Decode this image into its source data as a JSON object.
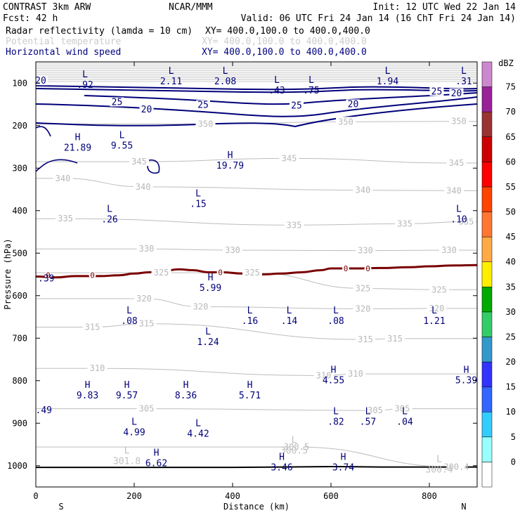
{
  "header": {
    "model": "CONTRAST  3km ARW",
    "forecast": "Fcst:   42 h",
    "center": "NCAR/MMM",
    "init": "Init: 12 UTC Wed 22 Jan 14",
    "valid": "Valid: 06 UTC Fri 24 Jan 14 (16 ChT Fri 24 Jan 14)",
    "fields": [
      {
        "label": "Radar reflectivity (lamda = 10 cm)",
        "xy": "XY= 400.0,100.0 to 400.0,400.0",
        "color": "#000000"
      },
      {
        "label": "Potential temperature",
        "xy": "XY= 400.0,100.0 to 400.0,400.0",
        "color": "#cccccc"
      },
      {
        "label": "Horizontal wind speed",
        "xy": "XY= 400.0,100.0 to 400.0,400.0",
        "color": "#000080"
      }
    ]
  },
  "chart_data": {
    "type": "cross-section",
    "xlabel": "Distance (km)",
    "ylabel": "Pressure (hPa)",
    "xlim": [
      0,
      900
    ],
    "ylim": [
      1050,
      50
    ],
    "xticks": [
      "0",
      "200",
      "400",
      "600",
      "800"
    ],
    "xtick_values": [
      0,
      200,
      400,
      600,
      800
    ],
    "yticks": [
      "100",
      "200",
      "300",
      "400",
      "500",
      "600",
      "700",
      "800",
      "900",
      "1000"
    ],
    "ytick_values": [
      100,
      200,
      300,
      400,
      500,
      600,
      700,
      800,
      900,
      1000
    ],
    "left_end": "S",
    "right_end": "N",
    "colorbar": {
      "unit": "dBZ",
      "levels": [
        "0",
        "5",
        "10",
        "15",
        "20",
        "25",
        "30",
        "35",
        "40",
        "45",
        "50",
        "55",
        "60",
        "65",
        "70",
        "75"
      ],
      "colors": [
        "#ffffff",
        "#99ffff",
        "#33ccff",
        "#3366ff",
        "#3333ff",
        "#3399cc",
        "#33cc66",
        "#00aa00",
        "#ffee00",
        "#ffaa44",
        "#ff7733",
        "#ff4400",
        "#ff0000",
        "#cc0000",
        "#993333",
        "#992299",
        "#cc88cc"
      ]
    },
    "theta_contours": [
      {
        "value": 350,
        "labels": [
          {
            "text": "350",
            "x": 345,
            "p": 196
          },
          {
            "text": "350",
            "x": 630,
            "p": 191
          },
          {
            "text": "350",
            "x": 860,
            "p": 190
          }
        ]
      },
      {
        "value": 345,
        "labels": [
          {
            "text": "345",
            "x": 210,
            "p": 285
          },
          {
            "text": "345",
            "x": 515,
            "p": 277
          },
          {
            "text": "345",
            "x": 855,
            "p": 288
          }
        ]
      },
      {
        "value": 340,
        "labels": [
          {
            "text": "340",
            "x": 55,
            "p": 324
          },
          {
            "text": "340",
            "x": 218,
            "p": 344
          },
          {
            "text": "340",
            "x": 665,
            "p": 352
          },
          {
            "text": "340",
            "x": 850,
            "p": 353
          }
        ]
      },
      {
        "value": 335,
        "labels": [
          {
            "text": "335",
            "x": 60,
            "p": 419
          },
          {
            "text": "335",
            "x": 525,
            "p": 434
          },
          {
            "text": "335",
            "x": 750,
            "p": 431
          },
          {
            "text": "335",
            "x": 875,
            "p": 426
          }
        ]
      },
      {
        "value": 330,
        "labels": [
          {
            "text": "330",
            "x": 225,
            "p": 490
          },
          {
            "text": "330",
            "x": 400,
            "p": 493
          },
          {
            "text": "330",
            "x": 670,
            "p": 494
          },
          {
            "text": "330",
            "x": 840,
            "p": 493
          }
        ]
      },
      {
        "value": 325,
        "labels": [
          {
            "text": "325",
            "x": 255,
            "p": 546
          },
          {
            "text": "325",
            "x": 440,
            "p": 546
          },
          {
            "text": "325",
            "x": 665,
            "p": 583
          },
          {
            "text": "325",
            "x": 820,
            "p": 586
          }
        ]
      },
      {
        "value": 320,
        "labels": [
          {
            "text": "320",
            "x": 220,
            "p": 607
          },
          {
            "text": "320",
            "x": 335,
            "p": 626
          },
          {
            "text": "320",
            "x": 665,
            "p": 631
          },
          {
            "text": "320",
            "x": 815,
            "p": 630
          }
        ]
      },
      {
        "value": 315,
        "labels": [
          {
            "text": "315",
            "x": 115,
            "p": 674
          },
          {
            "text": "315",
            "x": 225,
            "p": 666
          },
          {
            "text": "315",
            "x": 670,
            "p": 703
          },
          {
            "text": "315",
            "x": 730,
            "p": 701
          }
        ]
      },
      {
        "value": 310,
        "labels": [
          {
            "text": "310",
            "x": 125,
            "p": 771
          },
          {
            "text": "310",
            "x": 585,
            "p": 788
          },
          {
            "text": "310",
            "x": 650,
            "p": 784
          }
        ]
      },
      {
        "value": 305,
        "labels": [
          {
            "text": "305",
            "x": 225,
            "p": 866
          },
          {
            "text": "305",
            "x": 690,
            "p": 870
          },
          {
            "text": "305",
            "x": 745,
            "p": 866
          }
        ]
      },
      {
        "value": 300,
        "labels": [
          {
            "text": "300.5",
            "x": 530,
            "p": 956
          },
          {
            "text": "300.4",
            "x": 855,
            "p": 1003
          }
        ]
      }
    ],
    "theta_extrema": [
      {
        "type": "L",
        "value": "301.8",
        "x": 185,
        "p": 975
      },
      {
        "type": "L",
        "value": "300.5",
        "x": 525,
        "p": 950
      },
      {
        "type": "L",
        "value": "300.4",
        "x": 820,
        "p": 995
      }
    ],
    "wind_contours": [
      {
        "value": 20,
        "labels": [
          {
            "text": "20",
            "x": 10,
            "p": 95
          },
          {
            "text": "20",
            "x": 225,
            "p": 162
          },
          {
            "text": "20",
            "x": 645,
            "p": 150
          },
          {
            "text": "20",
            "x": 855,
            "p": 124
          }
        ]
      },
      {
        "value": 25,
        "labels": [
          {
            "text": "25",
            "x": 165,
            "p": 145
          },
          {
            "text": "25",
            "x": 340,
            "p": 152
          },
          {
            "text": "25",
            "x": 530,
            "p": 153
          },
          {
            "text": "25",
            "x": 815,
            "p": 120
          }
        ]
      }
    ],
    "wind_extrema": [
      {
        "type": "L",
        "value": ".92",
        "x": 100,
        "p": 90
      },
      {
        "type": "L",
        "value": "2.11",
        "x": 275,
        "p": 81
      },
      {
        "type": "L",
        "value": "2.08",
        "x": 385,
        "p": 81
      },
      {
        "type": "L",
        "value": ".43",
        "x": 490,
        "p": 103
      },
      {
        "type": "L",
        "value": ".75",
        "x": 560,
        "p": 103
      },
      {
        "type": "L",
        "value": "1.94",
        "x": 715,
        "p": 81
      },
      {
        "type": "L",
        "value": ".31",
        "x": 870,
        "p": 81
      },
      {
        "type": "H",
        "value": "21.89",
        "x": 85,
        "p": 238
      },
      {
        "type": "L",
        "value": "9.55",
        "x": 175,
        "p": 233
      },
      {
        "type": "H",
        "value": "19.79",
        "x": 395,
        "p": 280
      },
      {
        "type": "L",
        "value": ".15",
        "x": 330,
        "p": 370
      },
      {
        "type": "L",
        "value": ".26",
        "x": 150,
        "p": 406
      },
      {
        "type": "L",
        "value": ".10",
        "x": 860,
        "p": 406
      },
      {
        "type": "H",
        "value": "5.99",
        "x": 355,
        "p": 567
      },
      {
        "type": "L",
        "value": ".08",
        "x": 190,
        "p": 645
      },
      {
        "type": "L",
        "value": ".16",
        "x": 435,
        "p": 645
      },
      {
        "type": "L",
        "value": ".14",
        "x": 515,
        "p": 645
      },
      {
        "type": "L",
        "value": ".08",
        "x": 610,
        "p": 645
      },
      {
        "type": "L",
        "value": "1.21",
        "x": 810,
        "p": 645
      },
      {
        "type": "L",
        "value": "1.24",
        "x": 350,
        "p": 695
      },
      {
        "type": "H",
        "value": "4.55",
        "x": 605,
        "p": 785
      },
      {
        "type": "H",
        "value": "5.39",
        "x": 875,
        "p": 785
      },
      {
        "type": "H",
        "value": "9.83",
        "x": 105,
        "p": 820
      },
      {
        "type": "H",
        "value": "9.57",
        "x": 185,
        "p": 820
      },
      {
        "type": "H",
        "value": "8.36",
        "x": 305,
        "p": 820
      },
      {
        "type": "H",
        "value": "5.71",
        "x": 435,
        "p": 820
      },
      {
        "type": "L",
        "value": ".82",
        "x": 610,
        "p": 882
      },
      {
        "type": "L",
        "value": ".57",
        "x": 675,
        "p": 882
      },
      {
        "type": "L",
        "value": ".04",
        "x": 750,
        "p": 882
      },
      {
        "type": "L",
        "value": "4.99",
        "x": 200,
        "p": 907
      },
      {
        "type": "L",
        "value": "4.42",
        "x": 330,
        "p": 910
      },
      {
        "type": "H",
        "value": "6.62",
        "x": 245,
        "p": 980
      },
      {
        "type": "H",
        "value": "3.46",
        "x": 500,
        "p": 990
      },
      {
        "type": "H",
        "value": "3.74",
        "x": 625,
        "p": 990
      }
    ],
    "edge_labels": [
      {
        "text": ".39",
        "x": 10,
        "p": 560
      },
      {
        "text": ".49",
        "x": 5,
        "p": 870
      }
    ],
    "reflectivity_contour": {
      "value": "0",
      "labels": [
        {
          "text": "0",
          "x": 25,
          "p": 552
        },
        {
          "text": "0",
          "x": 115,
          "p": 552
        },
        {
          "text": "0",
          "x": 375,
          "p": 545
        },
        {
          "text": "0",
          "x": 630,
          "p": 536
        },
        {
          "text": "0",
          "x": 675,
          "p": 536
        }
      ]
    },
    "reflectivity_profile": [
      [
        0,
        555
      ],
      [
        40,
        557
      ],
      [
        80,
        554
      ],
      [
        130,
        554
      ],
      [
        170,
        552
      ],
      [
        200,
        548
      ],
      [
        230,
        545
      ],
      [
        260,
        542
      ],
      [
        290,
        538
      ],
      [
        320,
        540
      ],
      [
        350,
        545
      ],
      [
        380,
        545
      ],
      [
        420,
        548
      ],
      [
        460,
        550
      ],
      [
        500,
        548
      ],
      [
        540,
        545
      ],
      [
        580,
        540
      ],
      [
        600,
        536
      ],
      [
        650,
        536
      ],
      [
        700,
        535
      ],
      [
        760,
        533
      ],
      [
        800,
        531
      ],
      [
        850,
        529
      ],
      [
        900,
        528
      ]
    ],
    "surface_profile": [
      [
        0,
        1004
      ],
      [
        100,
        1004
      ],
      [
        200,
        1004
      ],
      [
        300,
        1004
      ],
      [
        400,
        1004
      ],
      [
        500,
        1003
      ],
      [
        600,
        1002
      ],
      [
        700,
        1003
      ],
      [
        800,
        1003
      ],
      [
        900,
        1003
      ]
    ]
  }
}
